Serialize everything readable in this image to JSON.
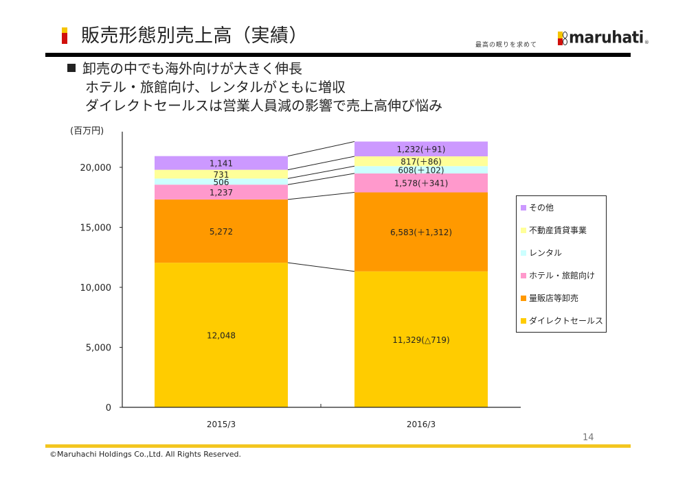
{
  "header": {
    "title": "販売形態別売上高（実績）",
    "slogan": "最高の眠りを求めて",
    "logo_text": "maruhati",
    "logo_registered": "®"
  },
  "bullets": [
    "卸売の中でも海外向けが大きく伸長",
    "ホテル・旅館向け、レンタルがともに増収",
    "ダイレクトセールスは営業人員減の影響で売上高伸び悩み"
  ],
  "chart_data": {
    "type": "bar",
    "stacked": true,
    "ylabel": "(百万円)",
    "xlabel": "",
    "ylim": [
      0,
      22000
    ],
    "yticks": [
      0,
      5000,
      10000,
      15000,
      20000
    ],
    "ytick_labels": [
      "0",
      "5,000",
      "10,000",
      "15,000",
      "20,000"
    ],
    "categories": [
      "2015/3",
      "2016/3"
    ],
    "legend_position": "right",
    "series": [
      {
        "name": "ダイレクトセールス",
        "color": "#ffcc00",
        "values": [
          12048,
          11329
        ],
        "labels": [
          "12,048",
          "11,329(△719)"
        ]
      },
      {
        "name": "量販店等卸売",
        "color": "#ff9900",
        "values": [
          5272,
          6583
        ],
        "labels": [
          "5,272",
          "6,583(＋1,312)"
        ]
      },
      {
        "name": "ホテル・旅館向け",
        "color": "#ff99cc",
        "values": [
          1237,
          1578
        ],
        "labels": [
          "1,237",
          "1,578(＋341)"
        ]
      },
      {
        "name": "レンタル",
        "color": "#ccffff",
        "values": [
          506,
          608
        ],
        "labels": [
          "506",
          "608(＋102)"
        ]
      },
      {
        "name": "不動産賃貸事業",
        "color": "#ffff99",
        "values": [
          731,
          817
        ],
        "labels": [
          "731",
          "817(＋86)"
        ]
      },
      {
        "name": "その他",
        "color": "#cc99ff",
        "values": [
          1141,
          1232
        ],
        "labels": [
          "1,141",
          "1,232(＋91)"
        ]
      }
    ],
    "legend_order": [
      "その他",
      "不動産賃貸事業",
      "レンタル",
      "ホテル・旅館向け",
      "量販店等卸売",
      "ダイレクトセールス"
    ]
  },
  "footer": {
    "page_number": "14",
    "copyright": "©Maruhachi Holdings Co.,Ltd. All Rights Reserved."
  }
}
